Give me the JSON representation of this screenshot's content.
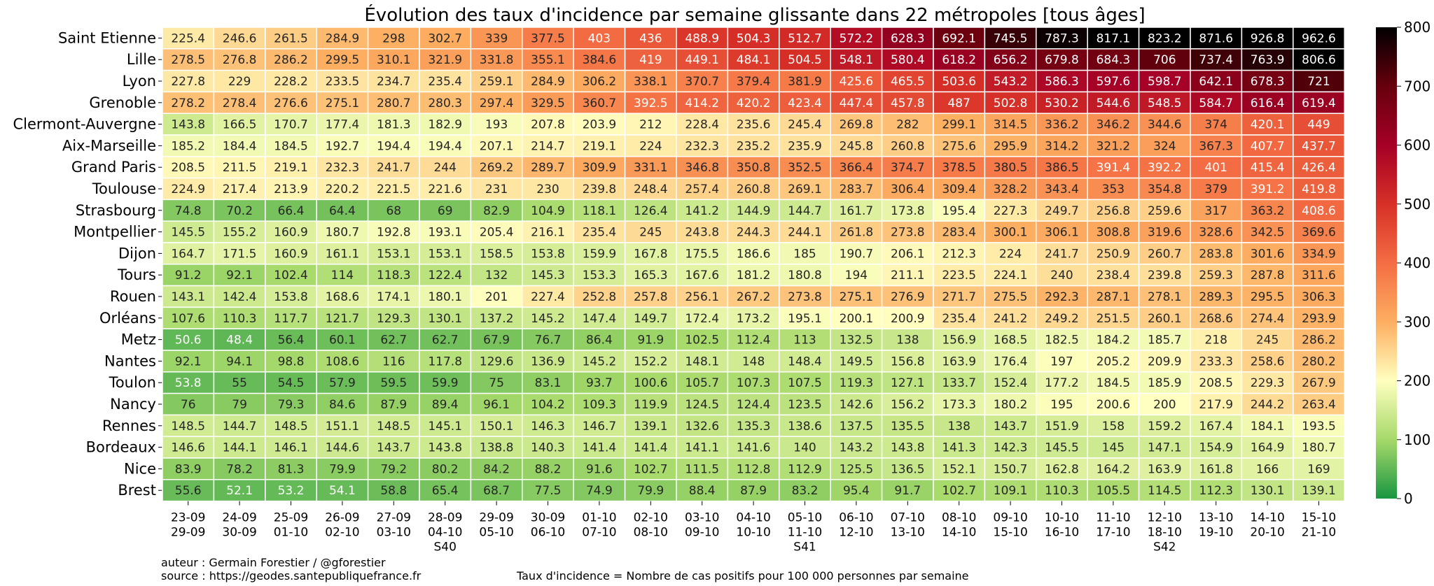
{
  "chart_data": {
    "type": "heatmap",
    "title": "Évolution des taux d'incidence par semaine glissante dans 22 métropoles [tous âges]",
    "rows": [
      "Saint Etienne",
      "Lille",
      "Lyon",
      "Grenoble",
      "Clermont-Auvergne",
      "Aix-Marseille",
      "Grand Paris",
      "Toulouse",
      "Strasbourg",
      "Montpellier",
      "Dijon",
      "Tours",
      "Rouen",
      "Orléans",
      "Metz",
      "Nantes",
      "Toulon",
      "Nancy",
      "Rennes",
      "Bordeaux",
      "Nice",
      "Brest"
    ],
    "columns": [
      [
        "23-09",
        "29-09"
      ],
      [
        "24-09",
        "30-09"
      ],
      [
        "25-09",
        "01-10"
      ],
      [
        "26-09",
        "02-10"
      ],
      [
        "27-09",
        "03-10"
      ],
      [
        "28-09",
        "04-10",
        "S40"
      ],
      [
        "29-09",
        "05-10"
      ],
      [
        "30-09",
        "06-10"
      ],
      [
        "01-10",
        "07-10"
      ],
      [
        "02-10",
        "08-10"
      ],
      [
        "03-10",
        "09-10"
      ],
      [
        "04-10",
        "10-10"
      ],
      [
        "05-10",
        "11-10",
        "S41"
      ],
      [
        "06-10",
        "12-10"
      ],
      [
        "07-10",
        "13-10"
      ],
      [
        "08-10",
        "14-10"
      ],
      [
        "09-10",
        "15-10"
      ],
      [
        "10-10",
        "16-10"
      ],
      [
        "11-10",
        "17-10"
      ],
      [
        "12-10",
        "18-10",
        "S42"
      ],
      [
        "13-10",
        "19-10"
      ],
      [
        "14-10",
        "20-10"
      ],
      [
        "15-10",
        "21-10"
      ]
    ],
    "values": [
      [
        225.4,
        246.6,
        261.5,
        284.9,
        298,
        302.7,
        339,
        377.5,
        403,
        436,
        488.9,
        504.3,
        512.7,
        572.2,
        628.3,
        692.1,
        745.5,
        787.3,
        817.1,
        823.2,
        871.6,
        926.8,
        962.6
      ],
      [
        278.5,
        276.8,
        286.2,
        299.5,
        310.1,
        321.9,
        331.8,
        355.1,
        384.6,
        419,
        449.1,
        484.1,
        504.5,
        548.1,
        580.4,
        618.2,
        656.2,
        679.8,
        684.3,
        706,
        737.4,
        763.9,
        806.6
      ],
      [
        227.8,
        229,
        228.2,
        233.5,
        234.7,
        235.4,
        259.1,
        284.9,
        306.2,
        338.1,
        370.7,
        379.4,
        381.9,
        425.6,
        465.5,
        503.6,
        543.2,
        586.3,
        597.6,
        598.7,
        642.1,
        678.3,
        721
      ],
      [
        278.2,
        278.4,
        276.6,
        275.1,
        280.7,
        280.3,
        297.4,
        329.5,
        360.7,
        392.5,
        414.2,
        420.2,
        423.4,
        447.4,
        457.8,
        487,
        502.8,
        530.2,
        544.6,
        548.5,
        584.7,
        616.4,
        619.4
      ],
      [
        143.8,
        166.5,
        170.7,
        177.4,
        181.3,
        182.9,
        193,
        207.8,
        203.9,
        212,
        228.4,
        235.6,
        245.4,
        269.8,
        282,
        299.1,
        314.5,
        336.2,
        346.2,
        344.6,
        374,
        420.1,
        449
      ],
      [
        185.2,
        184.4,
        184.5,
        192.7,
        194.4,
        194.4,
        207.1,
        214.7,
        219.1,
        224,
        232.3,
        235.2,
        235.9,
        245.8,
        260.8,
        275.6,
        295.9,
        314.2,
        321.2,
        324,
        367.3,
        407.7,
        437.7
      ],
      [
        208.5,
        211.5,
        219.1,
        232.3,
        241.7,
        244,
        269.2,
        289.7,
        309.9,
        331.1,
        346.8,
        350.8,
        352.5,
        366.4,
        374.7,
        378.5,
        380.5,
        386.5,
        391.4,
        392.2,
        401,
        415.4,
        426.4
      ],
      [
        224.9,
        217.4,
        213.9,
        220.2,
        221.5,
        221.6,
        231,
        230,
        239.8,
        248.4,
        257.4,
        260.8,
        269.1,
        283.7,
        306.4,
        309.4,
        328.2,
        343.4,
        353,
        354.8,
        379,
        391.2,
        419.8
      ],
      [
        74.8,
        70.2,
        66.4,
        64.4,
        68,
        69,
        82.9,
        104.9,
        118.1,
        126.4,
        141.2,
        144.9,
        144.7,
        161.7,
        173.8,
        195.4,
        227.3,
        249.7,
        256.8,
        259.6,
        317,
        363.2,
        408.6
      ],
      [
        145.5,
        155.2,
        160.9,
        180.7,
        192.8,
        193.1,
        205.4,
        216.1,
        235.4,
        245,
        243.8,
        244.3,
        244.1,
        261.8,
        273.8,
        283.4,
        300.1,
        306.1,
        308.8,
        319.6,
        328.6,
        342.5,
        369.6
      ],
      [
        164.7,
        171.5,
        160.9,
        161.1,
        153.1,
        153.1,
        158.5,
        153.8,
        159.9,
        167.8,
        175.5,
        186.6,
        185,
        190.7,
        206.1,
        212.3,
        224,
        241.7,
        250.9,
        260.7,
        283.8,
        301.6,
        334.9
      ],
      [
        91.2,
        92.1,
        102.4,
        114,
        118.3,
        122.4,
        132,
        145.3,
        153.3,
        165.3,
        167.6,
        181.2,
        180.8,
        194,
        211.1,
        223.5,
        224.1,
        240,
        238.4,
        239.8,
        259.3,
        287.8,
        311.6
      ],
      [
        143.1,
        142.4,
        153.8,
        168.6,
        174.1,
        180.1,
        201,
        227.4,
        252.8,
        257.8,
        256.1,
        267.2,
        273.8,
        275.1,
        276.9,
        271.7,
        275.5,
        292.3,
        287.1,
        278.1,
        289.3,
        295.5,
        306.3
      ],
      [
        107.6,
        110.3,
        117.7,
        121.7,
        129.3,
        130.1,
        137.2,
        145.2,
        147.4,
        149.7,
        172.4,
        173.2,
        195.1,
        200.1,
        200.9,
        235.4,
        241.2,
        249.2,
        251.5,
        260.1,
        268.6,
        274.4,
        293.9
      ],
      [
        50.6,
        48.4,
        56.4,
        60.1,
        62.7,
        62.7,
        67.9,
        76.7,
        86.4,
        91.9,
        102.5,
        112.4,
        113,
        132.5,
        138,
        156.9,
        168.5,
        182.5,
        184.2,
        185.7,
        218,
        245,
        286.2
      ],
      [
        92.1,
        94.1,
        98.8,
        108.6,
        116,
        117.8,
        129.6,
        136.9,
        145.2,
        152.2,
        148.1,
        148,
        148.4,
        149.5,
        156.8,
        163.9,
        176.4,
        197,
        205.2,
        209.9,
        233.3,
        258.6,
        280.2
      ],
      [
        53.8,
        55,
        54.5,
        57.9,
        59.5,
        59.9,
        75,
        83.1,
        93.7,
        100.6,
        105.7,
        107.3,
        107.5,
        119.3,
        127.1,
        133.7,
        152.4,
        177.2,
        184.5,
        185.9,
        208.5,
        229.3,
        267.9
      ],
      [
        76,
        79,
        79.3,
        84.6,
        87.9,
        89.4,
        96.1,
        104.2,
        109.3,
        119.9,
        124.5,
        124.4,
        123.5,
        142.6,
        156.2,
        173.3,
        180.2,
        195,
        200.6,
        200,
        217.9,
        244.2,
        263.4
      ],
      [
        148.5,
        144.7,
        148.5,
        151.1,
        148.5,
        145.1,
        150.1,
        146.3,
        146.7,
        139.1,
        132.6,
        135.3,
        138.6,
        137.5,
        135.5,
        138,
        143.7,
        151.9,
        158,
        159.2,
        167.4,
        184.1,
        193.5
      ],
      [
        146.6,
        144.1,
        146.1,
        144.6,
        143.7,
        143.8,
        138.8,
        140.3,
        141.4,
        141.4,
        141.1,
        141.6,
        140,
        143.2,
        143.8,
        141.3,
        142.3,
        145.5,
        145,
        147.1,
        154.9,
        164.9,
        180.7
      ],
      [
        83.9,
        78.2,
        81.3,
        79.9,
        79.2,
        80.2,
        84.2,
        88.2,
        91.6,
        102.7,
        111.5,
        112.8,
        112.9,
        125.5,
        136.5,
        152.1,
        150.7,
        162.8,
        164.2,
        163.9,
        161.8,
        166,
        169
      ],
      [
        55.6,
        52.1,
        53.2,
        54.1,
        58.8,
        65.4,
        68.7,
        77.5,
        74.9,
        79.9,
        88.4,
        87.9,
        83.2,
        95.4,
        91.7,
        102.7,
        109.1,
        110.3,
        105.5,
        114.5,
        112.3,
        130.1,
        139.1
      ]
    ],
    "colorbar": {
      "range": [
        0,
        800
      ],
      "ticks": [
        0,
        100,
        200,
        300,
        400,
        500,
        600,
        700,
        800
      ]
    },
    "colorscale": [
      "#1a9641",
      "#a6d96a",
      "#ffffbf",
      "#fdae61",
      "#f46d43",
      "#d73027",
      "#a50026",
      "#67000d",
      "#000000"
    ]
  },
  "footer": {
    "author": "auteur : Germain Forestier / @gforestier",
    "source": "source : https://geodes.santepubliquefrance.fr",
    "definition": "Taux d'incidence = Nombre de cas positifs pour 100 000 personnes par semaine"
  }
}
